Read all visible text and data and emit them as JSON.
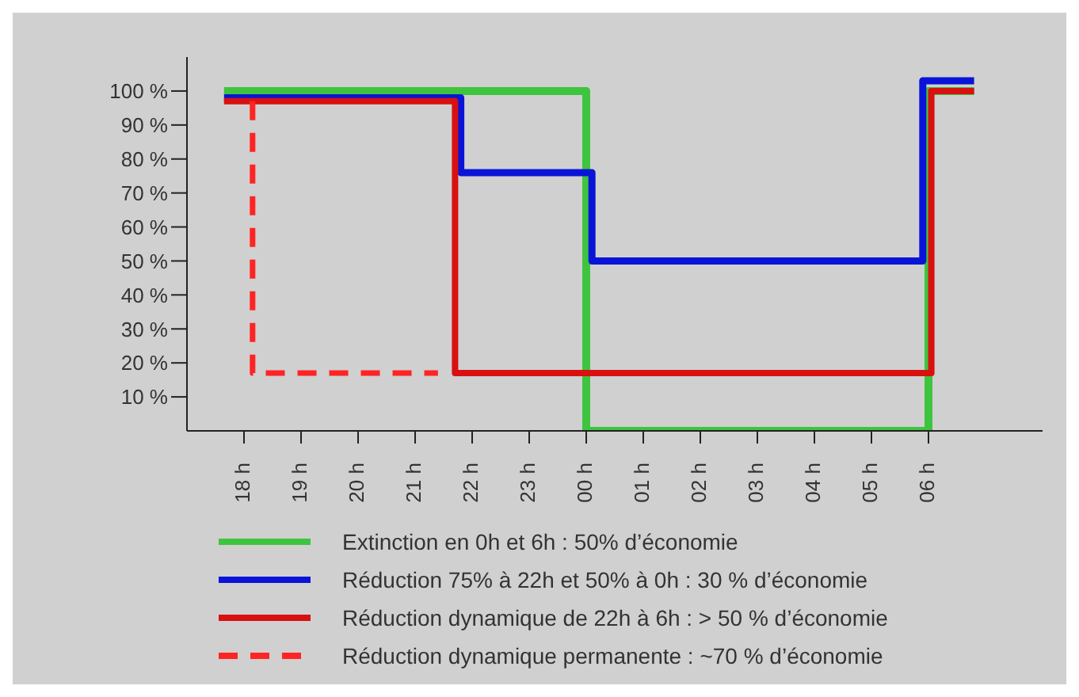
{
  "chart_data": {
    "type": "line",
    "xlim": [
      "--01-01T17:00",
      "--01-02T08:00"
    ],
    "ylim": [
      0,
      110
    ],
    "xticks": [
      {
        "value": "--01-01T18:00",
        "label": "18 h"
      },
      {
        "value": "--01-01T19:00",
        "label": "19 h"
      },
      {
        "value": "--01-01T20:00",
        "label": "20 h"
      },
      {
        "value": "--01-01T21:00",
        "label": "21 h"
      },
      {
        "value": "--01-01T22:00",
        "label": "22 h"
      },
      {
        "value": "--01-01T23:00",
        "label": "23 h"
      },
      {
        "value": "--01-02T00:00",
        "label": "00 h"
      },
      {
        "value": "--01-02T01:00",
        "label": "01 h"
      },
      {
        "value": "--01-02T02:00",
        "label": "02 h"
      },
      {
        "value": "--01-02T03:00",
        "label": "03 h"
      },
      {
        "value": "--01-02T04:00",
        "label": "04 h"
      },
      {
        "value": "--01-02T05:00",
        "label": "05 h"
      },
      {
        "value": "--01-02T06:00",
        "label": "06 h"
      }
    ],
    "yticks": [
      {
        "value": 10,
        "label": "10 %"
      },
      {
        "value": 20,
        "label": "20 %"
      },
      {
        "value": 30,
        "label": "30 %"
      },
      {
        "value": 40,
        "label": "40 %"
      },
      {
        "value": 50,
        "label": "50 %"
      },
      {
        "value": 60,
        "label": "60 %"
      },
      {
        "value": 70,
        "label": "70 %"
      },
      {
        "value": 80,
        "label": "80 %"
      },
      {
        "value": 90,
        "label": "90 %"
      },
      {
        "value": 100,
        "label": "100 %"
      }
    ],
    "legend": "bottom",
    "marker": "none",
    "series": [
      {
        "name": "Extinction en 0h et 6h : 50% d’économie",
        "color": "#3ec43e",
        "x": [
          "--01-01T17:39",
          "--01-02T00:00",
          "--01-02T00:00",
          "--01-02T06:00",
          "--01-02T06:00",
          "--01-02T06:48"
        ],
        "values": [
          100,
          100,
          0,
          0,
          100,
          100
        ],
        "line_style": "solid"
      },
      {
        "name": "Réduction 75% à 22h et 50% à 0h : 30 % d’économie",
        "color": "#0a14d8",
        "x": [
          "--01-01T17:39",
          "--01-01T21:48",
          "--01-01T21:48",
          "--01-02T00:06",
          "--01-02T00:06",
          "--01-02T05:54",
          "--01-02T05:54",
          "--01-02T06:48"
        ],
        "values": [
          98,
          98,
          76,
          76,
          50,
          50,
          103,
          103
        ],
        "line_style": "solid"
      },
      {
        "name": "Réduction dynamique de 22h à 6h : > 50 % d’économie",
        "color": "#d81010",
        "x": [
          "--01-01T17:39",
          "--01-01T21:42",
          "--01-01T21:42",
          "--01-02T06:03",
          "--01-02T06:03",
          "--01-02T06:48"
        ],
        "values": [
          97,
          97,
          17,
          17,
          100,
          100
        ],
        "line_style": "solid"
      },
      {
        "name": "Réduction dynamique permanente : ~70 % d’économie",
        "color": "#ff2424",
        "x": [
          "--01-01T18:09",
          "--01-01T18:09",
          "--01-01T21:24"
        ],
        "values": [
          97,
          17,
          17
        ],
        "line_style": "dashed"
      }
    ]
  }
}
